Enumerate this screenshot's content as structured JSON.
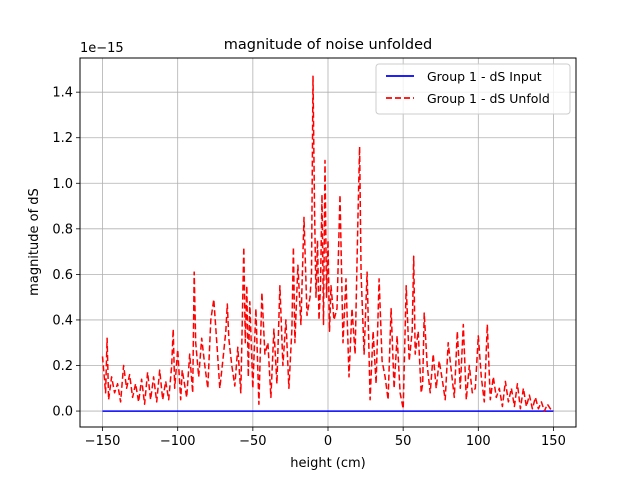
{
  "chart_data": {
    "type": "line",
    "title": "magnitude of noise unfolded",
    "xlabel": "height (cm)",
    "ylabel": "magnitude of dS",
    "scale_label": "1e−15",
    "xlim": [
      -165,
      165
    ],
    "ylim": [
      -0.07,
      1.55
    ],
    "xticks": [
      -150,
      -100,
      -50,
      0,
      50,
      100,
      150
    ],
    "xtick_labels": [
      "−150",
      "−100",
      "−50",
      "0",
      "50",
      "100",
      "150"
    ],
    "yticks": [
      0.0,
      0.2,
      0.4,
      0.6,
      0.8,
      1.0,
      1.2,
      1.4
    ],
    "ytick_labels": [
      "0.0",
      "0.2",
      "0.4",
      "0.6",
      "0.8",
      "1.0",
      "1.2",
      "1.4"
    ],
    "grid": true,
    "legend_position": "top-right",
    "series": [
      {
        "name": "Group 1 - dS Input",
        "color": "#0000ff",
        "style": "solid",
        "x": [
          -150,
          150
        ],
        "y": [
          0.0,
          0.0
        ]
      },
      {
        "name": "Group 1 - dS Unfold",
        "color": "#ff0000",
        "style": "dashed",
        "x": [
          -150,
          -148,
          -147,
          -146,
          -144,
          -142,
          -140,
          -138,
          -136,
          -134,
          -132,
          -130,
          -128,
          -126,
          -124,
          -122,
          -120,
          -118,
          -116,
          -114,
          -112,
          -110,
          -108,
          -106,
          -104,
          -103,
          -102,
          -100,
          -98,
          -97,
          -96,
          -94,
          -92,
          -90,
          -89,
          -88,
          -86,
          -84,
          -82,
          -80,
          -78,
          -76,
          -74,
          -72,
          -70,
          -68,
          -67,
          -66,
          -64,
          -62,
          -60,
          -58,
          -56,
          -55,
          -54,
          -53,
          -52,
          -50,
          -48,
          -46,
          -44,
          -42,
          -40,
          -38,
          -36,
          -34,
          -32,
          -30,
          -28,
          -26,
          -24,
          -23,
          -22,
          -20,
          -18,
          -16,
          -14,
          -12,
          -11,
          -10,
          -9,
          -8,
          -7,
          -6,
          -5,
          -4,
          -3,
          -2,
          -1,
          0,
          1,
          2,
          4,
          6,
          8,
          10,
          12,
          14,
          16,
          18,
          20,
          21,
          22,
          24,
          26,
          28,
          30,
          32,
          34,
          36,
          38,
          40,
          42,
          44,
          46,
          48,
          50,
          52,
          54,
          56,
          57,
          58,
          60,
          62,
          63,
          64,
          66,
          68,
          70,
          72,
          74,
          76,
          78,
          80,
          82,
          84,
          86,
          88,
          90,
          92,
          94,
          96,
          98,
          100,
          102,
          104,
          106,
          108,
          110,
          112,
          114,
          116,
          118,
          120,
          122,
          124,
          126,
          128,
          130,
          132,
          134,
          136,
          138,
          140,
          142,
          144,
          146,
          148,
          150
        ],
        "y": [
          0.24,
          0.08,
          0.32,
          0.05,
          0.15,
          0.08,
          0.12,
          0.04,
          0.2,
          0.1,
          0.16,
          0.06,
          0.12,
          0.04,
          0.14,
          0.03,
          0.17,
          0.05,
          0.15,
          0.04,
          0.18,
          0.05,
          0.13,
          0.05,
          0.2,
          0.36,
          0.1,
          0.27,
          0.05,
          0.18,
          0.14,
          0.06,
          0.25,
          0.08,
          0.61,
          0.3,
          0.15,
          0.32,
          0.2,
          0.1,
          0.4,
          0.49,
          0.3,
          0.1,
          0.22,
          0.35,
          0.47,
          0.32,
          0.2,
          0.11,
          0.28,
          0.08,
          0.72,
          0.3,
          0.55,
          0.15,
          0.48,
          0.1,
          0.45,
          0.03,
          0.52,
          0.25,
          0.3,
          0.06,
          0.36,
          0.12,
          0.55,
          0.2,
          0.4,
          0.1,
          0.36,
          0.72,
          0.3,
          0.64,
          0.38,
          0.85,
          0.42,
          0.5,
          0.6,
          1.47,
          0.9,
          0.5,
          0.75,
          0.4,
          0.55,
          0.95,
          0.38,
          1.1,
          0.5,
          0.75,
          0.35,
          0.55,
          0.4,
          0.45,
          0.95,
          0.3,
          0.58,
          0.15,
          0.45,
          0.25,
          0.88,
          1.16,
          0.6,
          0.25,
          0.61,
          0.05,
          0.35,
          0.12,
          0.58,
          0.22,
          0.15,
          0.05,
          0.45,
          0.1,
          0.33,
          0.08,
          0.01,
          0.55,
          0.22,
          0.35,
          0.68,
          0.25,
          0.35,
          0.08,
          0.12,
          0.43,
          0.2,
          0.08,
          0.25,
          0.1,
          0.22,
          0.14,
          0.05,
          0.3,
          0.18,
          0.06,
          0.35,
          0.1,
          0.38,
          0.05,
          0.2,
          0.08,
          0.1,
          0.33,
          0.15,
          0.04,
          0.38,
          0.05,
          0.15,
          0.06,
          0.1,
          0.02,
          0.13,
          0.04,
          0.1,
          0.02,
          0.12,
          0.01,
          0.1,
          0.02,
          0.07,
          0.01,
          0.06,
          0.01,
          0.04,
          0.0,
          0.03,
          0.01,
          0.0
        ]
      }
    ]
  }
}
